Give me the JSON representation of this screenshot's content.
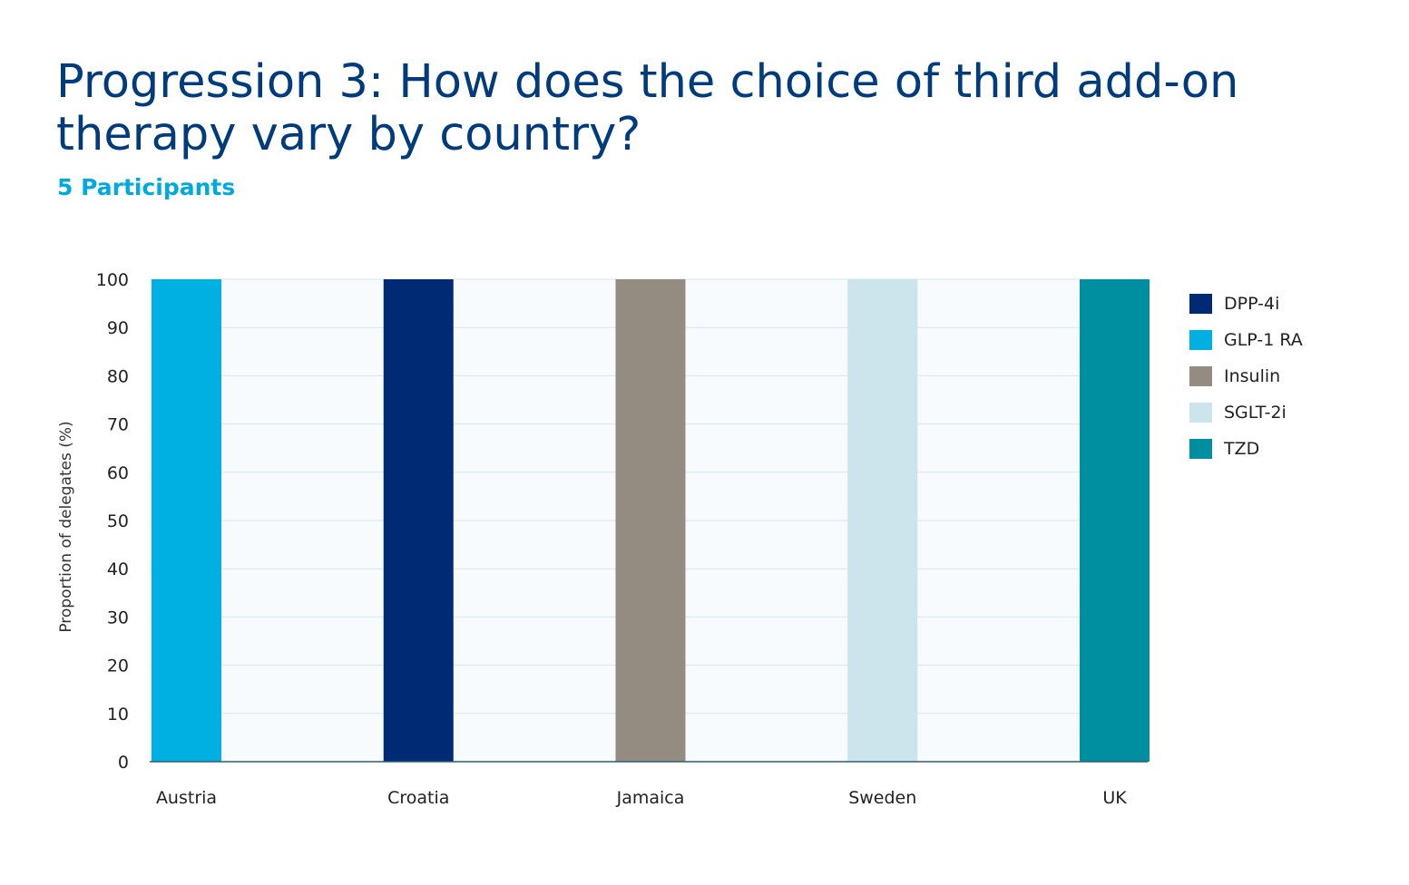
{
  "title": "Progression 3: How does the choice of third add-on therapy vary by country?",
  "subtitle": "5 Participants",
  "chart_data": {
    "type": "bar",
    "categories": [
      "Austria",
      "Croatia",
      "Jamaica",
      "Sweden",
      "UK"
    ],
    "series": [
      {
        "name": "DPP-4i",
        "color": "#002B74",
        "values": [
          0,
          100,
          0,
          0,
          0
        ]
      },
      {
        "name": "GLP-1 RA",
        "color": "#00B0E3",
        "values": [
          100,
          0,
          0,
          0,
          0
        ]
      },
      {
        "name": "Insulin",
        "color": "#948B81",
        "values": [
          0,
          0,
          100,
          0,
          0
        ]
      },
      {
        "name": "SGLT-2i",
        "color": "#CCE5ED",
        "values": [
          0,
          0,
          0,
          100,
          0
        ]
      },
      {
        "name": "TZD",
        "color": "#008FA1",
        "values": [
          0,
          0,
          0,
          0,
          100
        ]
      }
    ],
    "ylabel": "Proportion of delegates (%)",
    "xlabel": "",
    "ylim": [
      0,
      100
    ],
    "yticks": [
      0,
      10,
      20,
      30,
      40,
      50,
      60,
      70,
      80,
      90,
      100
    ],
    "grid": true,
    "legend": "right",
    "stacked": true,
    "plot_background": "#F7FBFD"
  }
}
